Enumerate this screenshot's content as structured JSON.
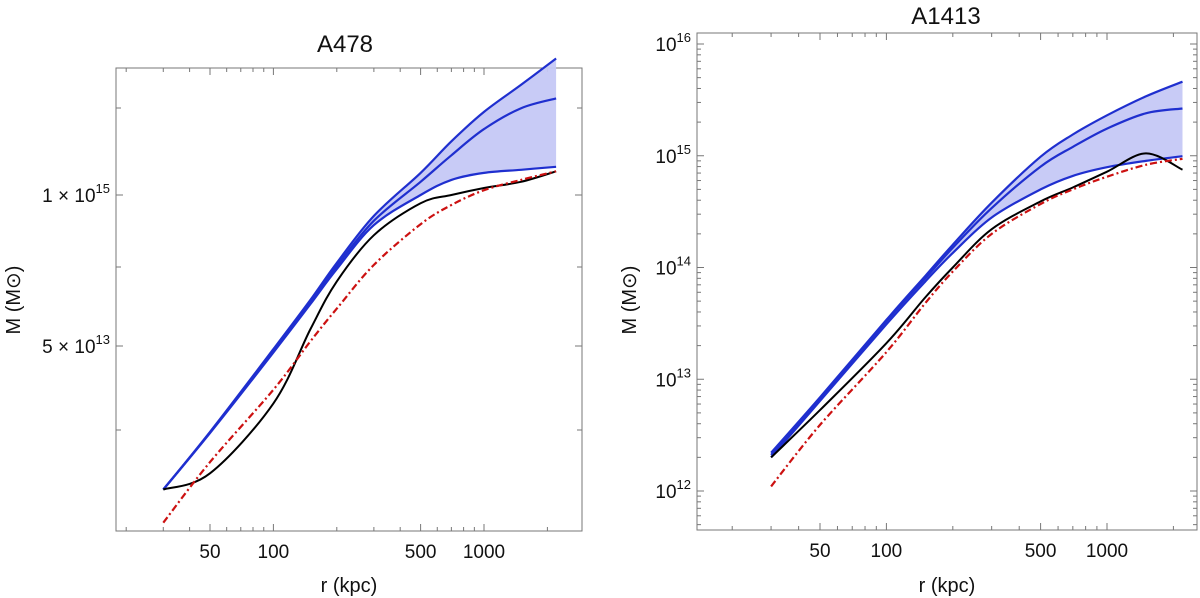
{
  "chart_data": [
    {
      "type": "line",
      "title": "A478",
      "xlabel": "r (kpc)",
      "ylabel": "M (M⊙)",
      "xscale": "log",
      "yscale": "log",
      "xlim": [
        15,
        3000
      ],
      "x_ticks": [
        {
          "value": 50,
          "label": "50"
        },
        {
          "value": 100,
          "label": "100"
        },
        {
          "value": 500,
          "label": "500"
        },
        {
          "value": 1000,
          "label": "1000"
        }
      ],
      "y_ticks": [
        {
          "value": 1000000000000000.0,
          "mantissa": "1 × 10",
          "exp": "15"
        },
        {
          "value": 50000000000000.0,
          "mantissa": "5 × 10",
          "exp": "13"
        }
      ],
      "x": [
        30,
        50,
        100,
        150,
        200,
        300,
        500,
        700,
        1000,
        1500,
        2200
      ],
      "band": {
        "upper": [
          2900000000000.0,
          9100000000000.0,
          47000000000000.0,
          125000000000000.0,
          260000000000000.0,
          660000000000000.0,
          1550000000000000.0,
          2900000000000000.0,
          5200000000000000.0,
          8900000000000000.0,
          1.5e+16
        ],
        "lower": [
          2900000000000.0,
          8900000000000.0,
          44000000000000.0,
          115000000000000.0,
          230000000000000.0,
          550000000000000.0,
          1000000000000000.0,
          1350000000000000.0,
          1550000000000000.0,
          1650000000000000.0,
          1750000000000000.0
        ],
        "color": "#c5c8f5"
      },
      "series": [
        {
          "values": [
            2900000000000.0,
            9100000000000.0,
            47000000000000.0,
            125000000000000.0,
            260000000000000.0,
            660000000000000.0,
            1550000000000000.0,
            2900000000000000.0,
            5200000000000000.0,
            8900000000000000.0,
            1.5e+16
          ],
          "color": "#1f2fcf",
          "style": "solid"
        },
        {
          "values": [
            2900000000000.0,
            9000000000000.0,
            45500000000000.0,
            120000000000000.0,
            245000000000000.0,
            600000000000000.0,
            1300000000000000.0,
            2200000000000000.0,
            3700000000000000.0,
            5600000000000000.0,
            6800000000000000.0
          ],
          "color": "#1f2fcf",
          "style": "solid"
        },
        {
          "values": [
            2900000000000.0,
            8900000000000.0,
            44000000000000.0,
            115000000000000.0,
            230000000000000.0,
            550000000000000.0,
            1000000000000000.0,
            1350000000000000.0,
            1550000000000000.0,
            1650000000000000.0,
            1750000000000000.0
          ],
          "color": "#1f2fcf",
          "style": "solid"
        },
        {
          "values": [
            2900000000000.0,
            4000000000000.0,
            16000000000000.0,
            70000000000000.0,
            180000000000000.0,
            450000000000000.0,
            850000000000000.0,
            1000000000000000.0,
            1150000000000000.0,
            1300000000000000.0,
            1600000000000000.0
          ],
          "color": "#000000",
          "style": "solid"
        },
        {
          "values": [
            1500000000000.0,
            5000000000000.0,
            21000000000000.0,
            55000000000000.0,
            105000000000000.0,
            250000000000000.0,
            560000000000000.0,
            820000000000000.0,
            1100000000000000.0,
            1350000000000000.0,
            1600000000000000.0
          ],
          "color": "#cc1111",
          "style": "dashdot"
        }
      ]
    },
    {
      "type": "line",
      "title": "A1413",
      "xlabel": "r (kpc)",
      "ylabel": "M (M⊙)",
      "xscale": "log",
      "yscale": "log",
      "xlim": [
        15,
        3000
      ],
      "ylim": [
        500000000000.0,
        1.2e+16
      ],
      "x_ticks": [
        {
          "value": 50,
          "label": "50"
        },
        {
          "value": 100,
          "label": "100"
        },
        {
          "value": 500,
          "label": "500"
        },
        {
          "value": 1000,
          "label": "1000"
        }
      ],
      "y_ticks": [
        {
          "value": 1000000000000.0,
          "mantissa": "10",
          "exp": "12"
        },
        {
          "value": 10000000000000.0,
          "mantissa": "10",
          "exp": "13"
        },
        {
          "value": 100000000000000.0,
          "mantissa": "10",
          "exp": "14"
        },
        {
          "value": 1000000000000000.0,
          "mantissa": "10",
          "exp": "15"
        },
        {
          "value": 1e+16,
          "mantissa": "10",
          "exp": "16"
        }
      ],
      "x": [
        30,
        50,
        100,
        150,
        200,
        300,
        500,
        700,
        1000,
        1500,
        2200
      ],
      "band": {
        "upper": [
          2200000000000.0,
          6900000000000.0,
          34000000000000.0,
          84000000000000.0,
          160000000000000.0,
          380000000000000.0,
          980000000000000.0,
          1550000000000000.0,
          2300000000000000.0,
          3400000000000000.0,
          4600000000000000.0
        ],
        "lower": [
          2000000000000.0,
          6400000000000.0,
          31000000000000.0,
          75000000000000.0,
          135000000000000.0,
          280000000000000.0,
          500000000000000.0,
          660000000000000.0,
          790000000000000.0,
          900000000000000.0,
          990000000000000.0
        ],
        "color": "#c5c8f5"
      },
      "series": [
        {
          "values": [
            2200000000000.0,
            6900000000000.0,
            34000000000000.0,
            84000000000000.0,
            160000000000000.0,
            380000000000000.0,
            980000000000000.0,
            1550000000000000.0,
            2300000000000000.0,
            3400000000000000.0,
            4600000000000000.0
          ],
          "color": "#1f2fcf",
          "style": "solid"
        },
        {
          "values": [
            2100000000000.0,
            6700000000000.0,
            33000000000000.0,
            80000000000000.0,
            150000000000000.0,
            340000000000000.0,
            800000000000000.0,
            1200000000000000.0,
            1750000000000000.0,
            2400000000000000.0,
            2650000000000000.0
          ],
          "color": "#1f2fcf",
          "style": "solid"
        },
        {
          "values": [
            2000000000000.0,
            6400000000000.0,
            31000000000000.0,
            75000000000000.0,
            135000000000000.0,
            280000000000000.0,
            500000000000000.0,
            660000000000000.0,
            790000000000000.0,
            900000000000000.0,
            990000000000000.0
          ],
          "color": "#1f2fcf",
          "style": "solid"
        },
        {
          "values": [
            2000000000000.0,
            5300000000000.0,
            21000000000000.0,
            54000000000000.0,
            100000000000000.0,
            220000000000000.0,
            390000000000000.0,
            520000000000000.0,
            720000000000000.0,
            1050000000000000.0,
            750000000000000.0
          ],
          "color": "#000000",
          "style": "solid"
        },
        {
          "values": [
            1100000000000.0,
            3900000000000.0,
            17500000000000.0,
            48000000000000.0,
            92000000000000.0,
            200000000000000.0,
            370000000000000.0,
            500000000000000.0,
            650000000000000.0,
            830000000000000.0,
            940000000000000.0
          ],
          "color": "#cc1111",
          "style": "dashdot"
        }
      ]
    }
  ]
}
